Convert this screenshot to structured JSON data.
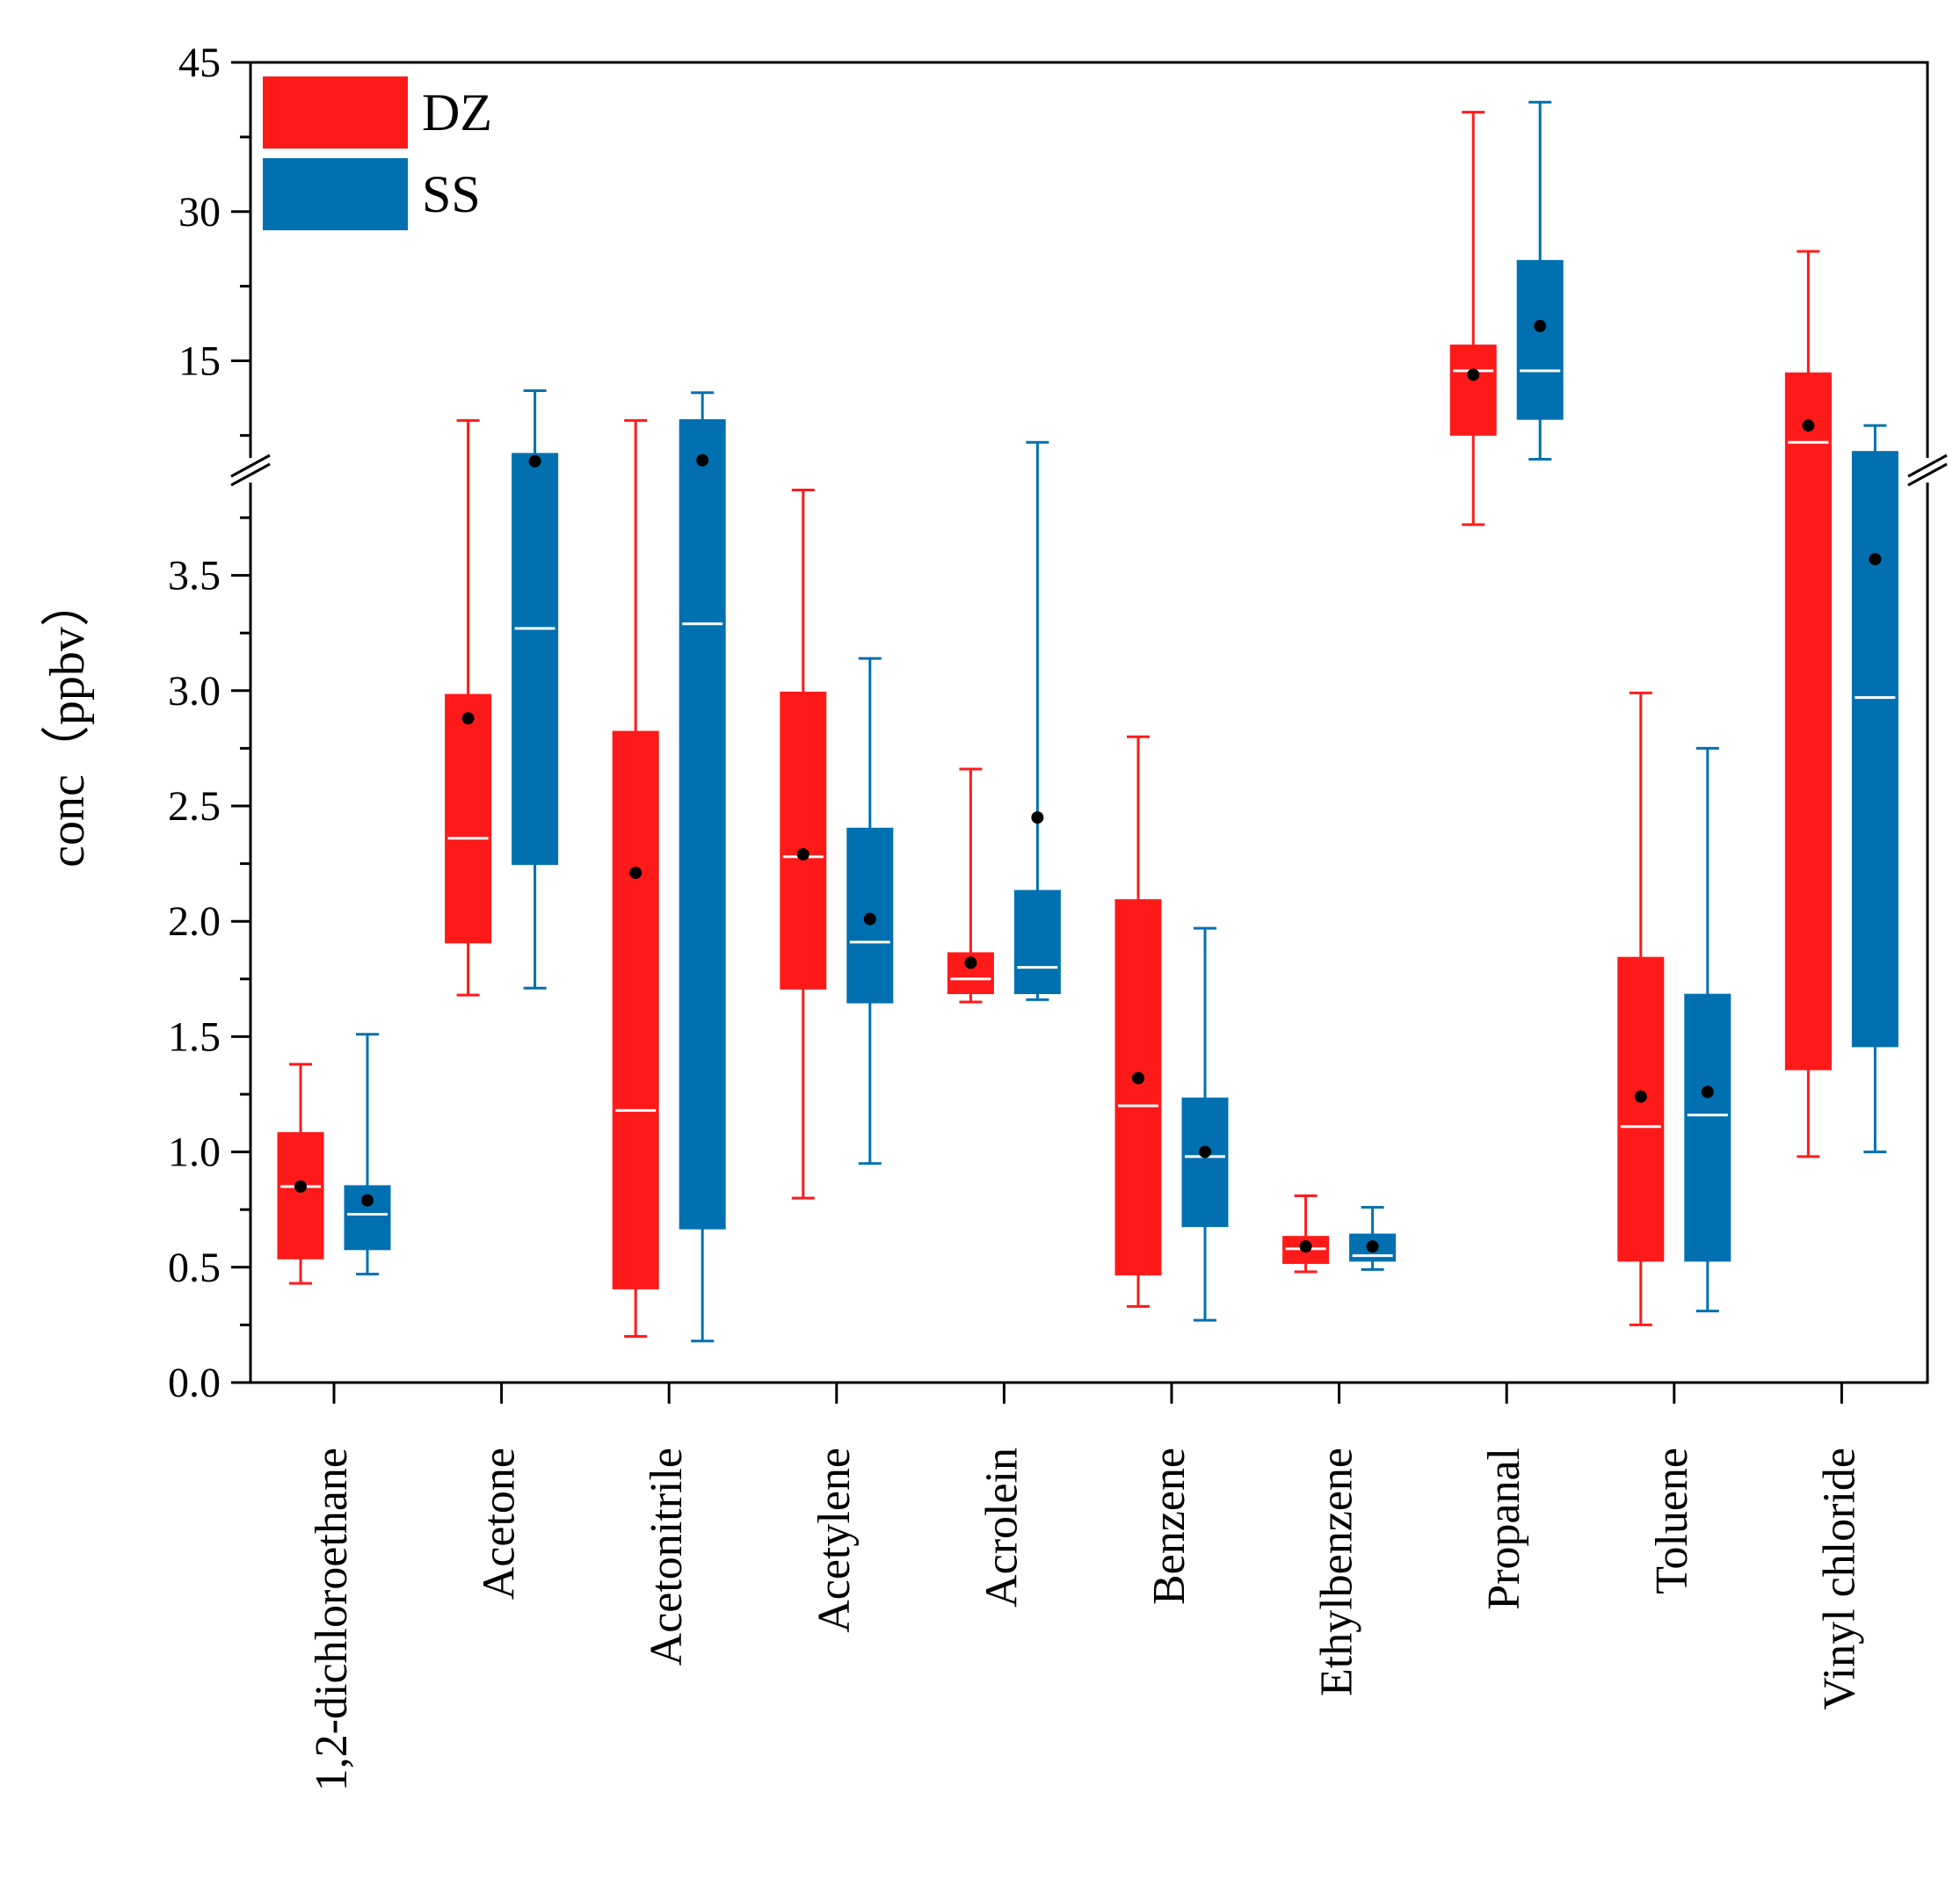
{
  "chart_data": {
    "type": "box",
    "ylabel": "conc（ppbv）",
    "broken_axis": {
      "lower_range": [
        0,
        4.0
      ],
      "upper_range": [
        4.0,
        45
      ],
      "lower_ticks": [
        "0.0",
        "0.5",
        "1.0",
        "1.5",
        "2.0",
        "2.5",
        "3.0",
        "3.5"
      ],
      "upper_ticks": [
        "15",
        "30",
        "45"
      ]
    },
    "legend": [
      {
        "name": "DZ",
        "color": "#ff1a1a"
      },
      {
        "name": "SS",
        "color": "#0070b0"
      }
    ],
    "categories": [
      "1,2-dichloroethane",
      "Acetone",
      "Acetonitrile",
      "Acetylene",
      "Acrolein",
      "Benzene",
      "Ethylbenzene",
      "Propanal",
      "Toluene",
      "Vinyl chloride"
    ],
    "series": [
      {
        "name": "DZ",
        "color": "#ff1a1a",
        "boxes": [
          {
            "min": 0.43,
            "q1": 0.54,
            "median": 0.85,
            "q3": 1.08,
            "max": 1.38,
            "mean": 0.85
          },
          {
            "min": 1.68,
            "q1": 1.91,
            "median": 2.36,
            "q3": 2.98,
            "max": 9.0,
            "mean": 2.88
          },
          {
            "min": 0.2,
            "q1": 0.41,
            "median": 1.18,
            "q3": 2.82,
            "max": 9.0,
            "mean": 2.21
          },
          {
            "min": 0.8,
            "q1": 1.71,
            "median": 2.28,
            "q3": 2.99,
            "max": 3.87,
            "mean": 2.29
          },
          {
            "min": 1.65,
            "q1": 1.69,
            "median": 1.75,
            "q3": 1.86,
            "max": 2.66,
            "mean": 1.82
          },
          {
            "min": 0.33,
            "q1": 0.47,
            "median": 1.2,
            "q3": 2.09,
            "max": 2.8,
            "mean": 1.32
          },
          {
            "min": 0.48,
            "q1": 0.52,
            "median": 0.58,
            "q3": 0.63,
            "max": 0.81,
            "mean": 0.59
          },
          {
            "min": 3.72,
            "q1": 7.6,
            "median": 14.0,
            "q3": 16.5,
            "max": 40.0,
            "mean": 13.6
          },
          {
            "min": 0.25,
            "q1": 0.53,
            "median": 1.11,
            "q3": 1.84,
            "max": 2.99,
            "mean": 1.24
          },
          {
            "min": 0.98,
            "q1": 1.36,
            "median": 6.8,
            "q3": 13.7,
            "max": 26.0,
            "mean": 8.5
          }
        ]
      },
      {
        "name": "SS",
        "color": "#0070b0",
        "boxes": [
          {
            "min": 0.47,
            "q1": 0.58,
            "median": 0.73,
            "q3": 0.85,
            "max": 1.51,
            "mean": 0.79
          },
          {
            "min": 1.71,
            "q1": 2.25,
            "median": 3.27,
            "q3": 5.6,
            "max": 12.0,
            "mean": 4.9
          },
          {
            "min": 0.18,
            "q1": 0.67,
            "median": 3.29,
            "q3": 9.0,
            "max": 11.8,
            "mean": 5.0
          },
          {
            "min": 0.95,
            "q1": 1.65,
            "median": 1.91,
            "q3": 2.4,
            "max": 3.14,
            "mean": 2.01
          },
          {
            "min": 1.66,
            "q1": 1.69,
            "median": 1.8,
            "q3": 2.13,
            "max": 6.8,
            "mean": 2.45
          },
          {
            "min": 0.27,
            "q1": 0.68,
            "median": 0.98,
            "q3": 1.23,
            "max": 1.97,
            "mean": 1.0
          },
          {
            "min": 0.49,
            "q1": 0.53,
            "median": 0.55,
            "q3": 0.64,
            "max": 0.76,
            "mean": 0.59
          },
          {
            "min": 5.1,
            "q1": 9.2,
            "median": 14.0,
            "q3": 25.0,
            "max": 41.0,
            "mean": 18.5
          },
          {
            "min": 0.31,
            "q1": 0.53,
            "median": 1.16,
            "q3": 1.68,
            "max": 2.75,
            "mean": 1.26
          },
          {
            "min": 1.0,
            "q1": 1.46,
            "median": 2.97,
            "q3": 5.8,
            "max": 8.5,
            "mean": 3.57
          }
        ]
      }
    ]
  }
}
